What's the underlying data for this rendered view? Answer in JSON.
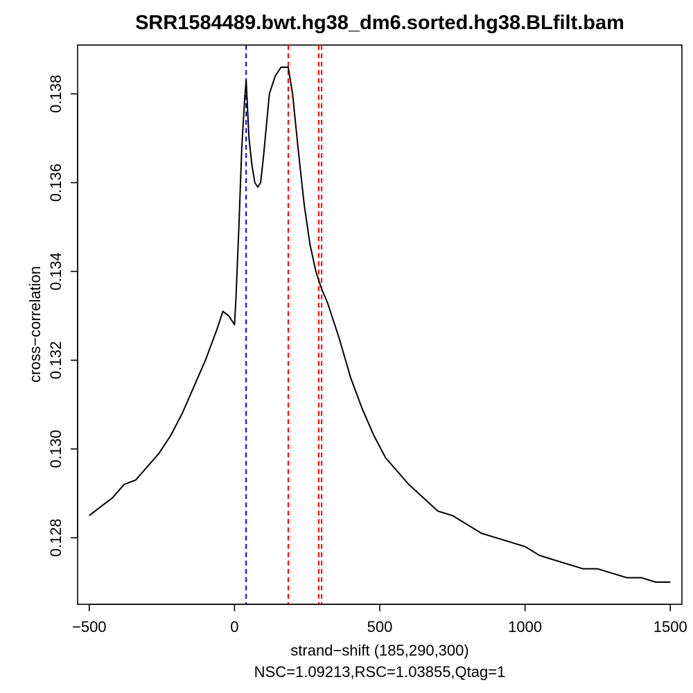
{
  "chart_data": {
    "type": "line",
    "title": "SRR1584489.bwt.hg38_dm6.sorted.hg38.BLfilt.bam",
    "xlabel": "strand−shift (185,290,300)",
    "subtitle": "NSC=1.09213,RSC=1.03855,Qtag=1",
    "ylabel": "cross−correlation",
    "xlim": [
      -540,
      1540
    ],
    "ylim": [
      0.1265,
      0.1391
    ],
    "x_ticks": [
      -500,
      0,
      500,
      1000,
      1500
    ],
    "x_tick_labels": [
      "−500",
      "0",
      "500",
      "1000",
      "1500"
    ],
    "y_ticks": [
      0.128,
      0.13,
      0.132,
      0.134,
      0.136,
      0.138
    ],
    "y_tick_labels": [
      "0.128",
      "0.130",
      "0.132",
      "0.134",
      "0.136",
      "0.138"
    ],
    "series": [
      {
        "color": "#000000",
        "x": [
          -500,
          -460,
          -420,
          -380,
          -340,
          -300,
          -260,
          -220,
          -180,
          -140,
          -100,
          -60,
          -40,
          -20,
          0,
          5,
          15,
          25,
          35,
          40,
          50,
          60,
          70,
          80,
          90,
          100,
          120,
          140,
          160,
          185,
          200,
          220,
          240,
          260,
          280,
          300,
          320,
          360,
          400,
          440,
          480,
          520,
          560,
          600,
          650,
          700,
          750,
          800,
          850,
          900,
          950,
          1000,
          1050,
          1100,
          1150,
          1200,
          1250,
          1300,
          1350,
          1400,
          1450,
          1500
        ],
        "y": [
          0.1285,
          0.1287,
          0.1289,
          0.1292,
          0.1293,
          0.1296,
          0.1299,
          0.1303,
          0.1308,
          0.1314,
          0.132,
          0.1327,
          0.1331,
          0.133,
          0.1328,
          0.1334,
          0.135,
          0.1368,
          0.1379,
          0.1383,
          0.137,
          0.1364,
          0.136,
          0.1359,
          0.136,
          0.1366,
          0.138,
          0.1384,
          0.1386,
          0.1386,
          0.138,
          0.1367,
          0.1355,
          0.1346,
          0.134,
          0.1336,
          0.1333,
          0.1325,
          0.1316,
          0.1309,
          0.1303,
          0.1298,
          0.1295,
          0.1292,
          0.1289,
          0.1286,
          0.1285,
          0.1283,
          0.1281,
          0.128,
          0.1279,
          0.1278,
          0.1276,
          0.1275,
          0.1274,
          0.1273,
          0.1273,
          0.1272,
          0.1271,
          0.1271,
          0.127,
          0.127
        ]
      }
    ],
    "vlines": [
      {
        "x": 40,
        "color": "#0000cc",
        "style": "dashed"
      },
      {
        "x": 185,
        "color": "#ff0000",
        "style": "dashed"
      },
      {
        "x": 290,
        "color": "#ff0000",
        "style": "dashed"
      },
      {
        "x": 300,
        "color": "#ff0000",
        "style": "dashed"
      }
    ],
    "grid": false,
    "legend": "none"
  }
}
